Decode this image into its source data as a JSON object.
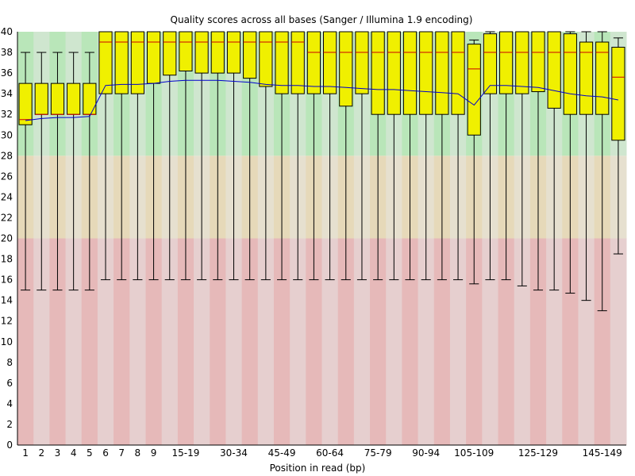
{
  "chart_data": {
    "type": "box",
    "title": "Quality scores across all bases (Sanger / Illumina 1.9 encoding)",
    "xlabel": "Position in read (bp)",
    "ylabel": "",
    "ylim": [
      0,
      40
    ],
    "y_ticks": [
      0,
      2,
      4,
      6,
      8,
      10,
      12,
      14,
      16,
      18,
      20,
      22,
      24,
      26,
      28,
      30,
      32,
      34,
      36,
      38,
      40
    ],
    "background_zones": [
      {
        "from": 0,
        "to": 20,
        "color": "#e6b9b9",
        "alt_color": "#e6cfcf"
      },
      {
        "from": 20,
        "to": 28,
        "color": "#e6d9b9",
        "alt_color": "#e6e0cf"
      },
      {
        "from": 28,
        "to": 40,
        "color": "#b9e6b9",
        "alt_color": "#cfe6cf"
      }
    ],
    "colors": {
      "box": "#f0f000",
      "median": "#cc0000",
      "mean": "#0000cc",
      "whisker": "#000000"
    },
    "categories": [
      "1",
      "2",
      "3",
      "4",
      "5",
      "6",
      "7",
      "8",
      "9",
      "10-14",
      "15-19",
      "20-24",
      "25-29",
      "30-34",
      "35-39",
      "40-44",
      "45-49",
      "50-54",
      "55-59",
      "60-64",
      "65-69",
      "70-74",
      "75-79",
      "80-84",
      "85-89",
      "90-94",
      "95-99",
      "100-104",
      "105-109",
      "110-114",
      "115-119",
      "120-124",
      "125-129",
      "130-134",
      "135-139",
      "140-144",
      "145-149",
      "150-151"
    ],
    "x_tick_labels": [
      "1",
      "2",
      "3",
      "4",
      "5",
      "6",
      "7",
      "8",
      "9",
      "15-19",
      "30-34",
      "45-49",
      "60-64",
      "75-79",
      "90-94",
      "105-109",
      "125-129",
      "145-149"
    ],
    "boxes": [
      {
        "q1": 31,
        "median": 31.5,
        "q3": 35,
        "low": 15,
        "high": 38
      },
      {
        "q1": 32,
        "median": 32,
        "q3": 35,
        "low": 15,
        "high": 38
      },
      {
        "q1": 32,
        "median": 32,
        "q3": 35,
        "low": 15,
        "high": 38
      },
      {
        "q1": 32,
        "median": 32,
        "q3": 35,
        "low": 15,
        "high": 38
      },
      {
        "q1": 32,
        "median": 32,
        "q3": 35,
        "low": 15,
        "high": 38
      },
      {
        "q1": 34,
        "median": 39,
        "q3": 40,
        "low": 16,
        "high": 40
      },
      {
        "q1": 34,
        "median": 39,
        "q3": 40,
        "low": 16,
        "high": 40
      },
      {
        "q1": 34,
        "median": 39,
        "q3": 40,
        "low": 16,
        "high": 40
      },
      {
        "q1": 35,
        "median": 39,
        "q3": 40,
        "low": 16,
        "high": 40
      },
      {
        "q1": 35.8,
        "median": 39,
        "q3": 40,
        "low": 16,
        "high": 40
      },
      {
        "q1": 36.2,
        "median": 39,
        "q3": 40,
        "low": 16,
        "high": 40
      },
      {
        "q1": 36,
        "median": 39,
        "q3": 40,
        "low": 16,
        "high": 40
      },
      {
        "q1": 36,
        "median": 39,
        "q3": 40,
        "low": 16,
        "high": 40
      },
      {
        "q1": 36,
        "median": 39,
        "q3": 40,
        "low": 16,
        "high": 40
      },
      {
        "q1": 35.5,
        "median": 39,
        "q3": 40,
        "low": 16,
        "high": 40
      },
      {
        "q1": 34.7,
        "median": 39,
        "q3": 40,
        "low": 16,
        "high": 40
      },
      {
        "q1": 34,
        "median": 39,
        "q3": 40,
        "low": 16,
        "high": 40
      },
      {
        "q1": 34,
        "median": 39,
        "q3": 40,
        "low": 16,
        "high": 40
      },
      {
        "q1": 34,
        "median": 38,
        "q3": 40,
        "low": 16,
        "high": 40
      },
      {
        "q1": 34,
        "median": 38,
        "q3": 40,
        "low": 16,
        "high": 40
      },
      {
        "q1": 32.8,
        "median": 38,
        "q3": 40,
        "low": 16,
        "high": 40
      },
      {
        "q1": 34,
        "median": 38,
        "q3": 40,
        "low": 16,
        "high": 40
      },
      {
        "q1": 32,
        "median": 38,
        "q3": 40,
        "low": 16,
        "high": 40
      },
      {
        "q1": 32,
        "median": 38,
        "q3": 40,
        "low": 16,
        "high": 40
      },
      {
        "q1": 32,
        "median": 38,
        "q3": 40,
        "low": 16,
        "high": 40
      },
      {
        "q1": 32,
        "median": 38,
        "q3": 40,
        "low": 16,
        "high": 40
      },
      {
        "q1": 32,
        "median": 38,
        "q3": 40,
        "low": 16,
        "high": 40
      },
      {
        "q1": 32,
        "median": 38,
        "q3": 40,
        "low": 16,
        "high": 40
      },
      {
        "q1": 30,
        "median": 36.4,
        "q3": 38.8,
        "low": 15.6,
        "high": 39.2
      },
      {
        "q1": 34,
        "median": 38,
        "q3": 39.8,
        "low": 16,
        "high": 40
      },
      {
        "q1": 34,
        "median": 38,
        "q3": 40,
        "low": 16,
        "high": 40
      },
      {
        "q1": 34,
        "median": 38,
        "q3": 40,
        "low": 15.4,
        "high": 40
      },
      {
        "q1": 34.2,
        "median": 38,
        "q3": 40,
        "low": 15,
        "high": 40
      },
      {
        "q1": 32.6,
        "median": 38,
        "q3": 40,
        "low": 15,
        "high": 40
      },
      {
        "q1": 32,
        "median": 38,
        "q3": 39.8,
        "low": 14.7,
        "high": 40
      },
      {
        "q1": 32,
        "median": 38,
        "q3": 39,
        "low": 14,
        "high": 40
      },
      {
        "q1": 32,
        "median": 38,
        "q3": 39,
        "low": 13,
        "high": 40
      },
      {
        "q1": 29.5,
        "median": 35.6,
        "q3": 38.5,
        "low": 18.5,
        "high": 39.4
      }
    ],
    "mean": [
      31.4,
      31.6,
      31.7,
      31.7,
      31.8,
      34.8,
      34.9,
      34.9,
      35.0,
      35.2,
      35.3,
      35.3,
      35.3,
      35.2,
      35.1,
      34.9,
      34.8,
      34.8,
      34.7,
      34.7,
      34.6,
      34.5,
      34.4,
      34.4,
      34.3,
      34.2,
      34.1,
      34.0,
      32.9,
      34.8,
      34.8,
      34.7,
      34.6,
      34.3,
      34.0,
      33.8,
      33.7,
      33.4
    ]
  }
}
